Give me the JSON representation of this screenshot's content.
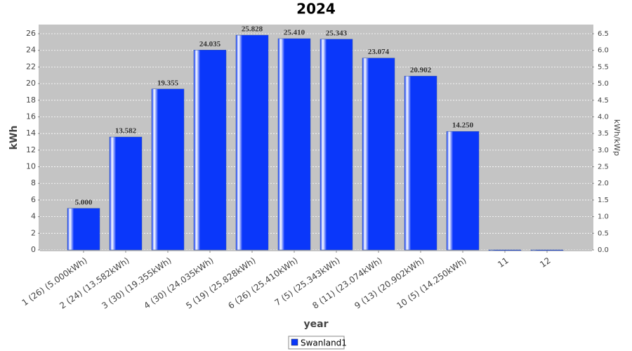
{
  "chart_data": {
    "type": "bar",
    "title": "2024",
    "x_label": "year",
    "y_label": "kWh",
    "y2_label": "kWh/kWp",
    "categories": [
      "1 (26)  (5.000kWh)",
      "2 (24)  (13.582kWh)",
      "3 (30)  (19.355kWh)",
      "4 (30)  (24.035kWh)",
      "5 (19)  (25.828kWh)",
      "6 (26)  (25.410kWh)",
      "7 (5)  (25.343kWh)",
      "8 (11)  (23.074kWh)",
      "9 (13)  (20.902kWh)",
      "10 (5)  (14.250kWh)",
      "11",
      "12"
    ],
    "series": [
      {
        "name": "Swanland1",
        "color": "#0a37fa",
        "values": [
          5.0,
          13.582,
          19.355,
          24.035,
          25.828,
          25.41,
          25.343,
          23.074,
          20.902,
          14.25,
          0,
          0
        ],
        "value_labels": [
          "5.000",
          "13.582",
          "19.355",
          "24.035",
          "25.828",
          "25.410",
          "25.343",
          "23.074",
          "20.902",
          "14.250",
          null,
          null
        ]
      }
    ],
    "ylim": [
      0,
      27.1
    ],
    "yticks": [
      0,
      2,
      4,
      6,
      8,
      10,
      12,
      14,
      16,
      18,
      20,
      22,
      24,
      26
    ],
    "y2lim": [
      0,
      6.775
    ],
    "y2ticks": [
      {
        "value": 0,
        "label": "0.0"
      },
      0.5,
      {
        "value": 1,
        "label": "1.0"
      },
      1.5,
      {
        "value": 2,
        "label": "2.0"
      },
      2.5,
      {
        "value": 3,
        "label": "3.0"
      },
      3.5,
      {
        "value": 4,
        "label": "4.0"
      },
      4.5,
      {
        "value": 5,
        "label": "5.0"
      },
      5.5,
      {
        "value": 6,
        "label": "6.0"
      },
      6.5
    ],
    "grid": true,
    "legend": "bottom"
  }
}
